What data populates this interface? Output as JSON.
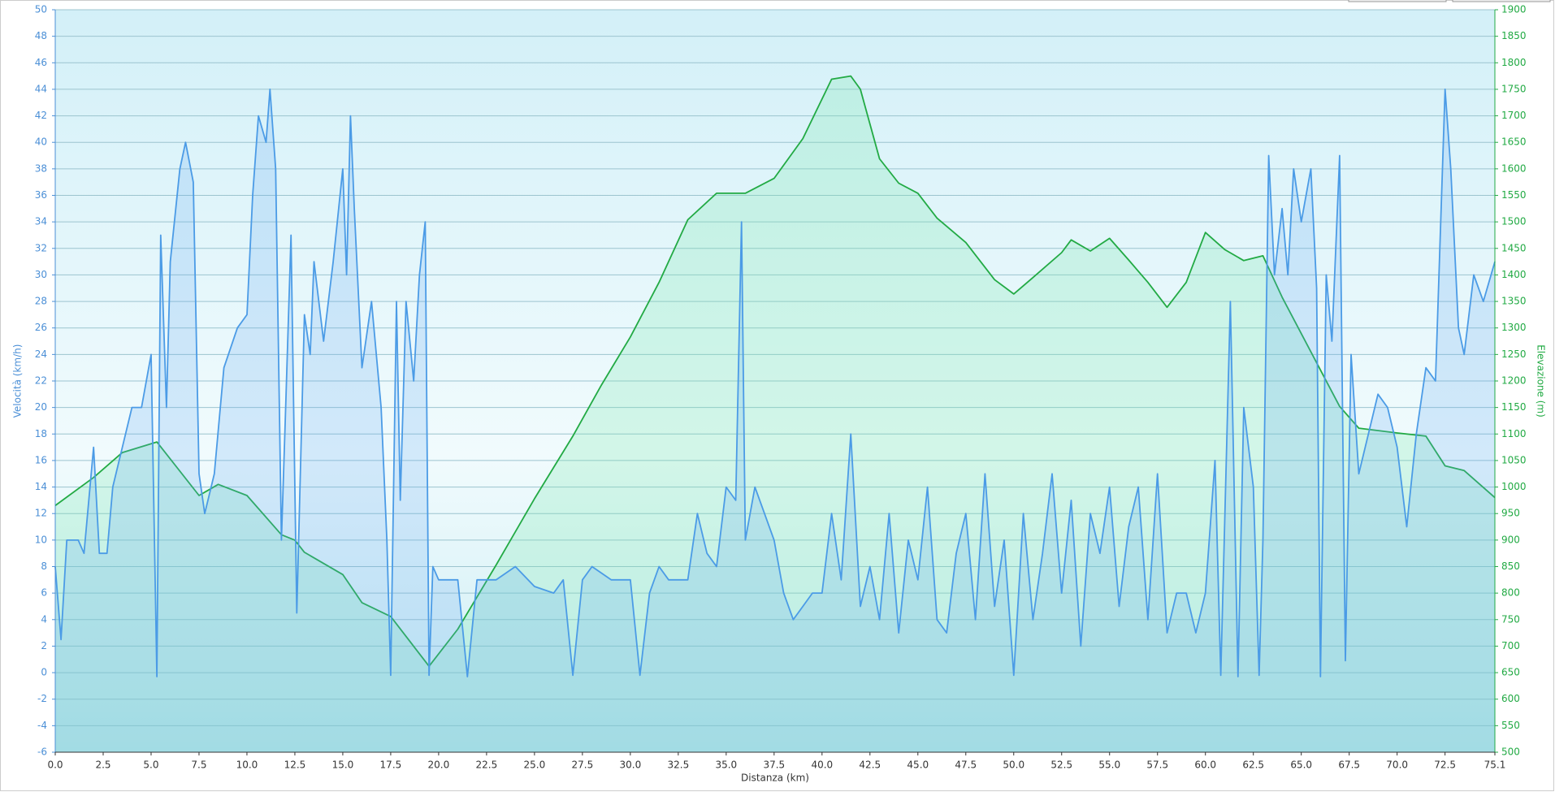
{
  "chart_data": {
    "type": "line",
    "x_label": "Distanza  (km)",
    "y_label": "Velocità (km/h)",
    "y2_label": "Elevazione (m)",
    "grid": true,
    "xlim": [
      0,
      75.1
    ],
    "xticks": [
      {
        "value": 0,
        "label": "0.0"
      },
      2.5,
      {
        "value": 5,
        "label": "5.0"
      },
      7.5,
      {
        "value": 10,
        "label": "10.0"
      },
      12.5,
      {
        "value": 15,
        "label": "15.0"
      },
      17.5,
      {
        "value": 20,
        "label": "20.0"
      },
      22.5,
      {
        "value": 25,
        "label": "25.0"
      },
      27.5,
      {
        "value": 30,
        "label": "30.0"
      },
      32.5,
      {
        "value": 35,
        "label": "35.0"
      },
      37.5,
      {
        "value": 40,
        "label": "40.0"
      },
      42.5,
      {
        "value": 45,
        "label": "45.0"
      },
      47.5,
      {
        "value": 50,
        "label": "50.0"
      },
      52.5,
      {
        "value": 55,
        "label": "55.0"
      },
      57.5,
      {
        "value": 60,
        "label": "60.0"
      },
      62.5,
      {
        "value": 65,
        "label": "65.0"
      },
      67.5,
      {
        "value": 70,
        "label": "70.0"
      },
      72.5,
      75.1
    ],
    "ylim": [
      -6,
      50
    ],
    "yticks": [
      -6,
      -4,
      -2,
      0,
      2,
      4,
      6,
      8,
      10,
      12,
      14,
      16,
      18,
      20,
      22,
      24,
      26,
      28,
      30,
      32,
      34,
      36,
      38,
      40,
      42,
      44,
      46,
      48,
      50
    ],
    "y2lim": [
      500,
      1900
    ],
    "y2ticks": [
      500,
      550,
      600,
      650,
      700,
      750,
      800,
      850,
      900,
      950,
      1000,
      1050,
      1100,
      1150,
      1200,
      1250,
      1300,
      1350,
      1400,
      1450,
      1500,
      1550,
      1600,
      1650,
      1700,
      1750,
      1800,
      1850,
      1900
    ],
    "series": [
      {
        "color": "#22aa44",
        "axis": "y2",
        "x": [
          0,
          2,
          3.5,
          5.3,
          7.5,
          8.5,
          10,
          11.8,
          12.5,
          13,
          15,
          16,
          17.5,
          19.5,
          21,
          23,
          25,
          27,
          28.5,
          30,
          31.5,
          33,
          34.5,
          36,
          37.5,
          39,
          40.5,
          41.5,
          42,
          43,
          44,
          45,
          46,
          47.5,
          49,
          50,
          51,
          52.5,
          53,
          54,
          55,
          56,
          57,
          58,
          59,
          60,
          61,
          62,
          63,
          64,
          65.5,
          67,
          68,
          70,
          71.5,
          72.5,
          73.5,
          75.1
        ],
        "values": [
          965,
          1018,
          1065,
          1085,
          984,
          1005,
          984,
          910,
          900,
          877,
          835,
          782,
          756,
          662,
          732,
          853,
          978,
          1096,
          1193,
          1283,
          1386,
          1504,
          1554,
          1554,
          1582,
          1657,
          1769,
          1775,
          1750,
          1619,
          1573,
          1554,
          1507,
          1461,
          1391,
          1364,
          1395,
          1442,
          1466,
          1445,
          1469,
          1428,
          1386,
          1339,
          1386,
          1480,
          1448,
          1427,
          1436,
          1358,
          1255,
          1152,
          1111,
          1102,
          1096,
          1040,
          1031,
          980
        ]
      },
      {
        "color": "#4b9be6",
        "axis": "y",
        "x": [
          0,
          0.3,
          0.6,
          1.2,
          1.5,
          2,
          2.3,
          2.7,
          3,
          3.5,
          4,
          4.5,
          5,
          5.3,
          5.5,
          5.8,
          6,
          6.5,
          6.8,
          7.2,
          7.5,
          7.8,
          8.3,
          8.8,
          9.5,
          10,
          10.3,
          10.6,
          11,
          11.2,
          11.5,
          11.8,
          12,
          12.3,
          12.6,
          13,
          13.3,
          13.5,
          14,
          14.5,
          15,
          15.2,
          15.4,
          15.6,
          16,
          16.5,
          17,
          17.3,
          17.5,
          17.8,
          18,
          18.3,
          18.7,
          19,
          19.3,
          19.5,
          19.7,
          20,
          21,
          21.5,
          22,
          23,
          24,
          25,
          26,
          26.5,
          27,
          27.5,
          28,
          29,
          30,
          30.5,
          31,
          31.5,
          32,
          33,
          33.5,
          34,
          34.5,
          35,
          35.5,
          35.8,
          36,
          36.5,
          37,
          37.5,
          38,
          38.5,
          39,
          39.5,
          40,
          40.5,
          41,
          41.5,
          42,
          42.5,
          43,
          43.5,
          44,
          44.5,
          45,
          45.5,
          46,
          46.5,
          47,
          47.5,
          48,
          48.5,
          49,
          49.5,
          50,
          50.5,
          51,
          51.5,
          52,
          52.5,
          53,
          53.5,
          54,
          54.5,
          55,
          55.5,
          56,
          56.5,
          57,
          57.5,
          58,
          58.5,
          59,
          59.5,
          60,
          60.5,
          60.8,
          61,
          61.3,
          61.7,
          62,
          62.5,
          62.8,
          63,
          63.3,
          63.6,
          64,
          64.3,
          64.6,
          65,
          65.5,
          65.8,
          66,
          66.3,
          66.6,
          67,
          67.3,
          67.6,
          68,
          68.5,
          69,
          69.5,
          70,
          70.5,
          71,
          71.5,
          72,
          72.5,
          72.8,
          73.2,
          73.5,
          74,
          74.5,
          75.1
        ],
        "values": [
          8,
          2.5,
          10,
          10,
          9,
          17,
          9,
          9,
          14,
          17,
          20,
          20,
          24,
          -0.3,
          33,
          20,
          31,
          38,
          40,
          37,
          15,
          12,
          15,
          23,
          26,
          27,
          36,
          42,
          40,
          44,
          38,
          10,
          19,
          33,
          4.5,
          27,
          24,
          31,
          25,
          31,
          38,
          30,
          42,
          35,
          23,
          28,
          20,
          10,
          -0.2,
          28,
          13,
          28,
          22,
          30,
          34,
          -0.2,
          8,
          7,
          7,
          -0.3,
          7,
          7,
          8,
          6.5,
          6,
          7,
          -0.2,
          7,
          8,
          7,
          7,
          -0.2,
          6,
          8,
          7,
          7,
          12,
          9,
          8,
          14,
          13,
          34,
          10,
          14,
          12,
          10,
          6,
          4,
          5,
          6,
          6,
          12,
          7,
          18,
          5,
          8,
          4,
          12,
          3,
          10,
          7,
          14,
          4,
          3,
          9,
          12,
          4,
          15,
          5,
          10,
          -0.2,
          12,
          4,
          9,
          15,
          6,
          13,
          2,
          12,
          9,
          14,
          5,
          11,
          14,
          4,
          15,
          3,
          6,
          6,
          3,
          6,
          16,
          -0.2,
          11,
          28,
          -0.3,
          20,
          14,
          -0.2,
          10,
          39,
          30,
          35,
          30,
          38,
          34,
          38,
          29,
          -0.3,
          30,
          25,
          39,
          0.9,
          24,
          15,
          18,
          21,
          20,
          17,
          11,
          18,
          23,
          22,
          44,
          38,
          26,
          24,
          30,
          28,
          31
        ]
      }
    ]
  }
}
